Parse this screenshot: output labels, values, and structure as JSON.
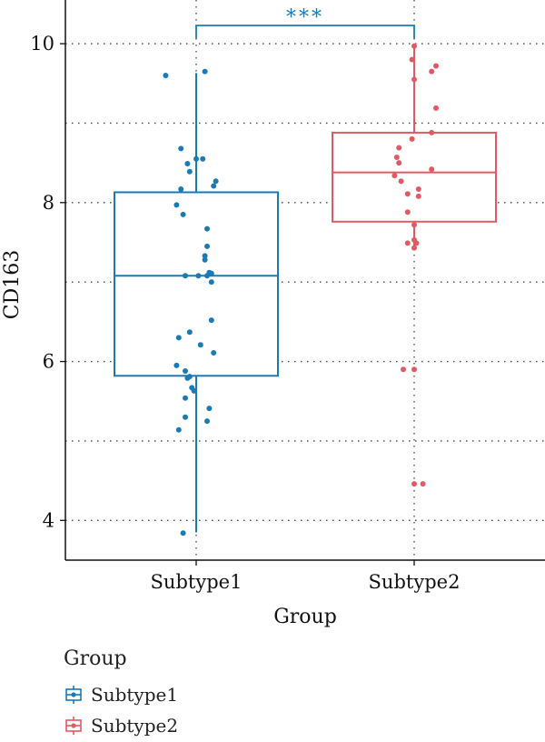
{
  "chart_data": {
    "type": "box",
    "xlabel": "Group",
    "ylabel": "CD163",
    "categories": [
      "Subtype1",
      "Subtype2"
    ],
    "yticks": [
      4,
      6,
      8,
      10
    ],
    "ylim": [
      3.5,
      10.55
    ],
    "grid": "dotted",
    "legend_title": "Group",
    "legend_position": "bottom-left",
    "significance": {
      "label": "***",
      "between": [
        "Subtype1",
        "Subtype2"
      ],
      "color": "#1a7ab5"
    },
    "series": [
      {
        "name": "Subtype1",
        "color": "#1a7ab5",
        "box": {
          "min": 3.85,
          "q1": 5.82,
          "median": 7.08,
          "q3": 8.13,
          "max": 9.63
        },
        "points": [
          {
            "x": -0.14,
            "y": 9.6
          },
          {
            "x": 0.04,
            "y": 9.65
          },
          {
            "x": -0.07,
            "y": 8.68
          },
          {
            "x": 0.0,
            "y": 8.55
          },
          {
            "x": 0.03,
            "y": 8.55
          },
          {
            "x": -0.04,
            "y": 8.49
          },
          {
            "x": -0.03,
            "y": 8.39
          },
          {
            "x": 0.09,
            "y": 8.27
          },
          {
            "x": 0.08,
            "y": 8.21
          },
          {
            "x": -0.07,
            "y": 8.17
          },
          {
            "x": -0.09,
            "y": 7.97
          },
          {
            "x": -0.06,
            "y": 7.85
          },
          {
            "x": 0.05,
            "y": 7.67
          },
          {
            "x": 0.05,
            "y": 7.45
          },
          {
            "x": 0.04,
            "y": 7.33
          },
          {
            "x": 0.04,
            "y": 7.28
          },
          {
            "x": 0.06,
            "y": 7.12
          },
          {
            "x": 0.07,
            "y": 7.11
          },
          {
            "x": 0.05,
            "y": 7.08
          },
          {
            "x": 0.01,
            "y": 7.08
          },
          {
            "x": -0.05,
            "y": 7.08
          },
          {
            "x": 0.07,
            "y": 7.0
          },
          {
            "x": 0.07,
            "y": 6.52
          },
          {
            "x": -0.03,
            "y": 6.37
          },
          {
            "x": -0.08,
            "y": 6.3
          },
          {
            "x": 0.02,
            "y": 6.21
          },
          {
            "x": 0.08,
            "y": 6.11
          },
          {
            "x": -0.09,
            "y": 5.95
          },
          {
            "x": -0.05,
            "y": 5.88
          },
          {
            "x": -0.03,
            "y": 5.81
          },
          {
            "x": -0.04,
            "y": 5.79
          },
          {
            "x": -0.02,
            "y": 5.67
          },
          {
            "x": -0.01,
            "y": 5.63
          },
          {
            "x": -0.05,
            "y": 5.54
          },
          {
            "x": 0.06,
            "y": 5.41
          },
          {
            "x": -0.05,
            "y": 5.3
          },
          {
            "x": 0.05,
            "y": 5.25
          },
          {
            "x": -0.08,
            "y": 5.14
          },
          {
            "x": -0.06,
            "y": 3.84
          }
        ]
      },
      {
        "name": "Subtype2",
        "color": "#e05a63",
        "box": {
          "min": 7.43,
          "q1": 7.76,
          "median": 8.38,
          "q3": 8.88,
          "max": 9.97
        },
        "points": [
          {
            "x": 0.0,
            "y": 9.97
          },
          {
            "x": -0.01,
            "y": 9.8
          },
          {
            "x": 0.1,
            "y": 9.72
          },
          {
            "x": 0.08,
            "y": 9.65
          },
          {
            "x": 0.0,
            "y": 9.55
          },
          {
            "x": 0.1,
            "y": 9.19
          },
          {
            "x": 0.08,
            "y": 8.88
          },
          {
            "x": -0.01,
            "y": 8.8
          },
          {
            "x": -0.07,
            "y": 8.69
          },
          {
            "x": -0.08,
            "y": 8.57
          },
          {
            "x": -0.07,
            "y": 8.5
          },
          {
            "x": 0.08,
            "y": 8.42
          },
          {
            "x": -0.09,
            "y": 8.34
          },
          {
            "x": -0.06,
            "y": 8.27
          },
          {
            "x": 0.02,
            "y": 8.17
          },
          {
            "x": -0.03,
            "y": 8.11
          },
          {
            "x": 0.02,
            "y": 8.08
          },
          {
            "x": -0.03,
            "y": 7.88
          },
          {
            "x": 0.0,
            "y": 7.72
          },
          {
            "x": 0.0,
            "y": 7.53
          },
          {
            "x": -0.03,
            "y": 7.49
          },
          {
            "x": 0.01,
            "y": 7.49
          },
          {
            "x": 0.0,
            "y": 7.43
          },
          {
            "x": -0.05,
            "y": 5.9
          },
          {
            "x": 0.0,
            "y": 5.9
          },
          {
            "x": 0.0,
            "y": 4.46
          },
          {
            "x": 0.04,
            "y": 4.46
          }
        ]
      }
    ]
  }
}
